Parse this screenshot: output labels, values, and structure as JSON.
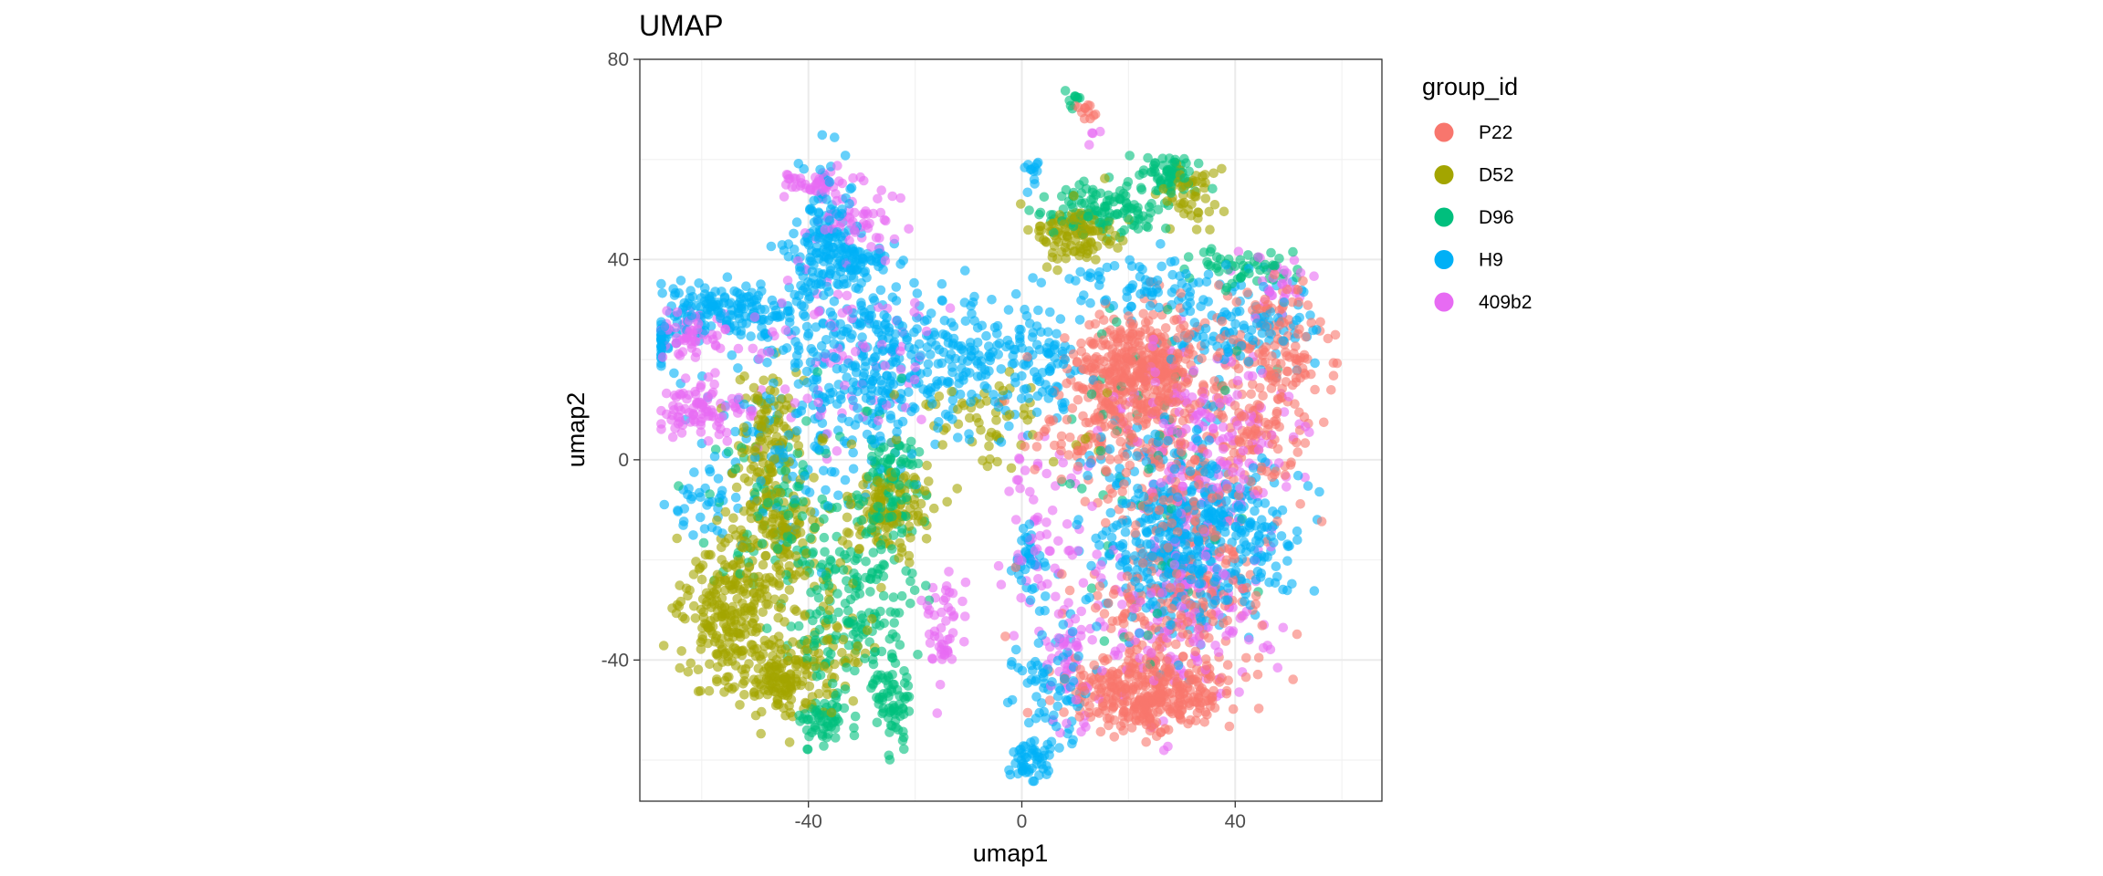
{
  "chart_data": {
    "type": "scatter",
    "title": "UMAP",
    "xlabel": "umap1",
    "ylabel": "umap2",
    "xlim": [
      -71.6,
      67.5
    ],
    "ylim": [
      -68.2,
      80
    ],
    "x_ticks": [
      -40,
      0,
      40
    ],
    "y_ticks": [
      -40,
      0,
      40,
      80
    ],
    "grid": true,
    "legend": {
      "title": "group_id",
      "placement": "right"
    },
    "series": [
      {
        "name": "P22",
        "color": "#F8766D",
        "clusters": [
          {
            "cx": 22,
            "cy": 18,
            "sx": 6,
            "sy": 6,
            "n": 450
          },
          {
            "cx": 24,
            "cy": -47,
            "sx": 7,
            "sy": 4,
            "n": 380
          },
          {
            "cx": 48,
            "cy": 23,
            "sx": 5,
            "sy": 7,
            "n": 140
          },
          {
            "cx": 30,
            "cy": -5,
            "sx": 9,
            "sy": 10,
            "n": 200
          },
          {
            "cx": 30,
            "cy": -30,
            "sx": 8,
            "sy": 6,
            "n": 150
          },
          {
            "cx": 12,
            "cy": 5,
            "sx": 6,
            "sy": 4,
            "n": 60
          },
          {
            "cx": 45,
            "cy": 5,
            "sx": 5,
            "sy": 6,
            "n": 70
          },
          {
            "cx": 12,
            "cy": 70,
            "sx": 1.2,
            "sy": 1.2,
            "n": 12
          }
        ]
      },
      {
        "name": "D52",
        "color": "#A3A500",
        "clusters": [
          {
            "cx": -55,
            "cy": -30,
            "sx": 4,
            "sy": 7,
            "n": 230
          },
          {
            "cx": -46,
            "cy": -43,
            "sx": 4,
            "sy": 4,
            "n": 120
          },
          {
            "cx": -45,
            "cy": -15,
            "sx": 4,
            "sy": 7,
            "n": 170
          },
          {
            "cx": -48,
            "cy": 5,
            "sx": 3,
            "sy": 7,
            "n": 110
          },
          {
            "cx": -25,
            "cy": -10,
            "sx": 4,
            "sy": 5,
            "n": 130
          },
          {
            "cx": 10,
            "cy": 45,
            "sx": 4,
            "sy": 3,
            "n": 110
          },
          {
            "cx": 31,
            "cy": 53,
            "sx": 3,
            "sy": 3,
            "n": 50
          },
          {
            "cx": -39,
            "cy": -40,
            "sx": 5,
            "sy": 6,
            "n": 80
          },
          {
            "cx": -5,
            "cy": 8,
            "sx": 9,
            "sy": 4,
            "n": 60
          }
        ]
      },
      {
        "name": "D96",
        "color": "#00BF7D",
        "clusters": [
          {
            "cx": -24,
            "cy": -48,
            "sx": 2,
            "sy": 4,
            "n": 70
          },
          {
            "cx": -37,
            "cy": -52,
            "sx": 2.5,
            "sy": 2,
            "n": 60
          },
          {
            "cx": -25,
            "cy": -5,
            "sx": 3,
            "sy": 6,
            "n": 110
          },
          {
            "cx": -33,
            "cy": -30,
            "sx": 6,
            "sy": 8,
            "n": 170
          },
          {
            "cx": 15,
            "cy": 50,
            "sx": 5,
            "sy": 2.5,
            "n": 120
          },
          {
            "cx": 28,
            "cy": 57,
            "sx": 3,
            "sy": 2,
            "n": 70
          },
          {
            "cx": 42,
            "cy": 38,
            "sx": 5,
            "sy": 2,
            "n": 50
          },
          {
            "cx": 10,
            "cy": 72,
            "sx": 1,
            "sy": 1,
            "n": 10
          },
          {
            "cx": -45,
            "cy": -10,
            "sx": 6,
            "sy": 10,
            "n": 90
          },
          {
            "cx": 25,
            "cy": 0,
            "sx": 10,
            "sy": 20,
            "n": 60
          }
        ]
      },
      {
        "name": "H9",
        "color": "#00B0F6",
        "clusters": [
          {
            "cx": -55,
            "cy": 30,
            "sx": 8,
            "sy": 2.5,
            "n": 160
          },
          {
            "cx": -68,
            "cy": 24,
            "sx": 2.5,
            "sy": 2,
            "n": 40
          },
          {
            "cx": -37,
            "cy": 45,
            "sx": 3,
            "sy": 6,
            "n": 120
          },
          {
            "cx": -32,
            "cy": 40,
            "sx": 4,
            "sy": 2,
            "n": 80
          },
          {
            "cx": -30,
            "cy": 20,
            "sx": 9,
            "sy": 9,
            "n": 280
          },
          {
            "cx": -10,
            "cy": 20,
            "sx": 7,
            "sy": 7,
            "n": 160
          },
          {
            "cx": 5,
            "cy": 20,
            "sx": 3,
            "sy": 6,
            "n": 70
          },
          {
            "cx": 28,
            "cy": -15,
            "sx": 7,
            "sy": 10,
            "n": 380
          },
          {
            "cx": 40,
            "cy": -15,
            "sx": 6,
            "sy": 8,
            "n": 160
          },
          {
            "cx": 2,
            "cy": -60,
            "sx": 2,
            "sy": 2,
            "n": 50
          },
          {
            "cx": 1,
            "cy": -20,
            "sx": 1.5,
            "sy": 3,
            "n": 35
          },
          {
            "cx": -60,
            "cy": -8,
            "sx": 3,
            "sy": 3,
            "n": 30
          },
          {
            "cx": 5,
            "cy": -45,
            "sx": 4,
            "sy": 8,
            "n": 80
          },
          {
            "cx": 40,
            "cy": 25,
            "sx": 8,
            "sy": 4,
            "n": 100
          },
          {
            "cx": 25,
            "cy": 35,
            "sx": 9,
            "sy": 3,
            "n": 80
          },
          {
            "cx": -45,
            "cy": 0,
            "sx": 8,
            "sy": 10,
            "n": 100
          },
          {
            "cx": 2,
            "cy": 58,
            "sx": 1,
            "sy": 2,
            "n": 12
          }
        ]
      },
      {
        "name": "409b2",
        "color": "#E76BF3",
        "clusters": [
          {
            "cx": -60,
            "cy": 10,
            "sx": 4,
            "sy": 2.5,
            "n": 90
          },
          {
            "cx": -62,
            "cy": 25,
            "sx": 4,
            "sy": 2.5,
            "n": 60
          },
          {
            "cx": -38,
            "cy": 55,
            "sx": 3,
            "sy": 1.5,
            "n": 50
          },
          {
            "cx": -30,
            "cy": 48,
            "sx": 5,
            "sy": 3,
            "n": 50
          },
          {
            "cx": -15,
            "cy": -35,
            "sx": 1.8,
            "sy": 5,
            "n": 50
          },
          {
            "cx": 35,
            "cy": 5,
            "sx": 8,
            "sy": 8,
            "n": 180
          },
          {
            "cx": 30,
            "cy": -30,
            "sx": 8,
            "sy": 10,
            "n": 180
          },
          {
            "cx": 10,
            "cy": -40,
            "sx": 3,
            "sy": 8,
            "n": 60
          },
          {
            "cx": 4,
            "cy": -15,
            "sx": 5,
            "sy": 10,
            "n": 60
          },
          {
            "cx": 13,
            "cy": 65,
            "sx": 1,
            "sy": 1,
            "n": 4
          },
          {
            "cx": -35,
            "cy": 20,
            "sx": 10,
            "sy": 10,
            "n": 90
          },
          {
            "cx": 48,
            "cy": 35,
            "sx": 3,
            "sy": 3,
            "n": 30
          }
        ]
      }
    ]
  }
}
